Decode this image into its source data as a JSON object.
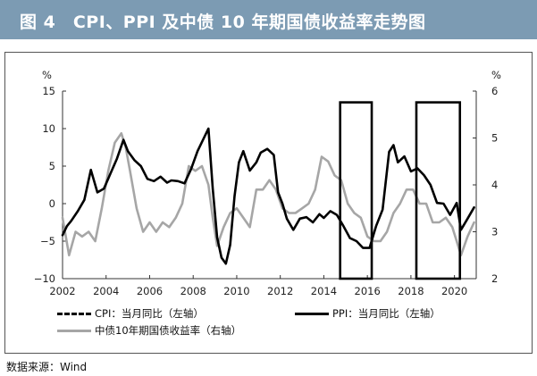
{
  "header": {
    "title": "图 4　CPI、PPI 及中债 10 年期国债收益率走势图"
  },
  "source": "数据来源：Wind",
  "chart_data": {
    "type": "line",
    "left_axis": {
      "unit": "%",
      "ylim": [
        -10,
        15
      ],
      "ticks": [
        "15",
        "10",
        "5",
        "0",
        "−5",
        "−10"
      ],
      "tick_values": [
        15,
        10,
        5,
        0,
        -5,
        -10
      ]
    },
    "right_axis": {
      "unit": "%",
      "ylim": [
        2,
        6
      ],
      "ticks": [
        "6",
        "5",
        "4",
        "3",
        "2"
      ],
      "tick_values": [
        6,
        5,
        4,
        3,
        2
      ]
    },
    "xlim": [
      2002,
      2021
    ],
    "x_ticks": [
      "2002",
      "2004",
      "2006",
      "2008",
      "2010",
      "2012",
      "2014",
      "2016",
      "2018",
      "2020"
    ],
    "x_tick_values": [
      2002,
      2004,
      2006,
      2008,
      2010,
      2012,
      2014,
      2016,
      2018,
      2020
    ],
    "grid": false,
    "legend_position": "bottom",
    "highlight_boxes": [
      {
        "x": [
          2014.75,
          2016.2
        ],
        "y": [
          -10,
          13.5
        ]
      },
      {
        "x": [
          2018.25,
          2020.25
        ],
        "y": [
          -10,
          13.5
        ]
      }
    ],
    "series": [
      {
        "name": "CPI：当月同比（左轴）",
        "axis": "left",
        "style": "dashed",
        "color": "#000000",
        "x": [
          2002.0,
          2002.5,
          2003.0,
          2003.5,
          2004.0,
          2004.5,
          2005.0,
          2005.5,
          2006.0,
          2006.5,
          2007.0,
          2007.5,
          2008.0,
          2008.5,
          2009.0,
          2009.5,
          2010.0,
          2010.5,
          2011.0,
          2011.5,
          2012.0,
          2012.5,
          2013.0,
          2013.5,
          2014.0,
          2014.5,
          2015.0,
          2015.5,
          2016.0,
          2016.5,
          2017.0,
          2017.5,
          2018.0,
          2018.5,
          2019.0,
          2019.5,
          2020.0,
          2020.5,
          2020.9
        ],
        "y": [
          -1.0,
          -0.8,
          0.5,
          0.3,
          3.2,
          5.3,
          3.0,
          1.8,
          1.5,
          1.4,
          3.0,
          5.6,
          8.0,
          7.1,
          -1.0,
          -1.8,
          1.5,
          3.0,
          5.0,
          6.4,
          4.5,
          2.2,
          2.1,
          2.7,
          2.5,
          2.3,
          0.8,
          1.6,
          1.8,
          1.9,
          2.5,
          1.5,
          1.5,
          1.9,
          1.7,
          2.7,
          5.0,
          2.7,
          0.5
        ]
      },
      {
        "name": "PPI：当月同比（左轴）",
        "axis": "left",
        "style": "solid",
        "color": "#000000",
        "x": [
          2002.0,
          2002.2,
          2002.4,
          2002.7,
          2003.0,
          2003.3,
          2003.6,
          2003.9,
          2004.2,
          2004.5,
          2004.8,
          2005.0,
          2005.3,
          2005.6,
          2005.9,
          2006.2,
          2006.5,
          2006.8,
          2007.0,
          2007.3,
          2007.6,
          2007.9,
          2008.2,
          2008.5,
          2008.7,
          2008.9,
          2009.1,
          2009.3,
          2009.5,
          2009.7,
          2009.9,
          2010.1,
          2010.3,
          2010.6,
          2010.9,
          2011.1,
          2011.4,
          2011.7,
          2011.9,
          2012.1,
          2012.3,
          2012.6,
          2012.9,
          2013.2,
          2013.5,
          2013.8,
          2014.0,
          2014.3,
          2014.6,
          2014.9,
          2015.2,
          2015.5,
          2015.8,
          2016.1,
          2016.4,
          2016.7,
          2017.0,
          2017.2,
          2017.4,
          2017.7,
          2018.0,
          2018.3,
          2018.6,
          2018.9,
          2019.2,
          2019.5,
          2019.8,
          2020.1,
          2020.3,
          2020.6,
          2020.9
        ],
        "y": [
          -4.2,
          -3.0,
          -2.3,
          -1.0,
          0.5,
          4.5,
          1.5,
          2.0,
          4.0,
          6.0,
          8.5,
          7.0,
          5.8,
          5.0,
          3.3,
          3.0,
          3.6,
          2.8,
          3.1,
          3.0,
          2.7,
          4.6,
          7.0,
          8.8,
          10.0,
          2.0,
          -4.5,
          -7.2,
          -8.0,
          -5.5,
          1.0,
          5.5,
          7.0,
          4.4,
          5.5,
          6.8,
          7.3,
          6.5,
          1.5,
          0.0,
          -2.0,
          -3.5,
          -2.0,
          -1.8,
          -2.5,
          -1.4,
          -1.9,
          -1.0,
          -1.5,
          -3.0,
          -4.6,
          -5.0,
          -5.9,
          -5.9,
          -3.0,
          -0.8,
          6.9,
          7.8,
          5.5,
          6.3,
          4.3,
          4.7,
          3.8,
          2.5,
          0.1,
          0.0,
          -1.5,
          0.1,
          -3.5,
          -2.0,
          -0.5
        ]
      },
      {
        "name": "中债10年期国债收益率（右轴）",
        "axis": "right",
        "style": "solid",
        "color": "#a6a6a6",
        "x": [
          2002.0,
          2002.3,
          2002.6,
          2002.9,
          2003.2,
          2003.5,
          2003.8,
          2004.1,
          2004.4,
          2004.7,
          2004.9,
          2005.1,
          2005.4,
          2005.7,
          2006.0,
          2006.3,
          2006.6,
          2006.9,
          2007.2,
          2007.5,
          2007.8,
          2008.1,
          2008.4,
          2008.7,
          2008.9,
          2009.1,
          2009.4,
          2009.7,
          2010.0,
          2010.3,
          2010.6,
          2010.9,
          2011.2,
          2011.5,
          2011.8,
          2012.1,
          2012.4,
          2012.7,
          2013.0,
          2013.3,
          2013.6,
          2013.9,
          2014.2,
          2014.5,
          2014.8,
          2015.1,
          2015.4,
          2015.7,
          2016.0,
          2016.3,
          2016.6,
          2016.9,
          2017.2,
          2017.5,
          2017.8,
          2018.1,
          2018.4,
          2018.7,
          2019.0,
          2019.3,
          2019.6,
          2019.9,
          2020.1,
          2020.3,
          2020.6,
          2020.9
        ],
        "y": [
          3.3,
          2.5,
          3.0,
          2.9,
          3.0,
          2.8,
          3.5,
          4.3,
          4.9,
          5.1,
          4.8,
          4.3,
          3.5,
          3.0,
          3.2,
          3.0,
          3.2,
          3.1,
          3.3,
          3.6,
          4.4,
          4.3,
          4.4,
          4.0,
          3.3,
          2.7,
          3.1,
          3.4,
          3.5,
          3.3,
          3.1,
          3.9,
          3.9,
          4.1,
          3.9,
          3.5,
          3.4,
          3.4,
          3.5,
          3.6,
          3.9,
          4.6,
          4.5,
          4.2,
          4.1,
          3.6,
          3.4,
          3.3,
          2.9,
          2.8,
          2.8,
          3.0,
          3.4,
          3.6,
          3.9,
          3.9,
          3.6,
          3.6,
          3.2,
          3.2,
          3.3,
          3.1,
          2.8,
          2.5,
          2.9,
          3.2
        ]
      }
    ]
  }
}
